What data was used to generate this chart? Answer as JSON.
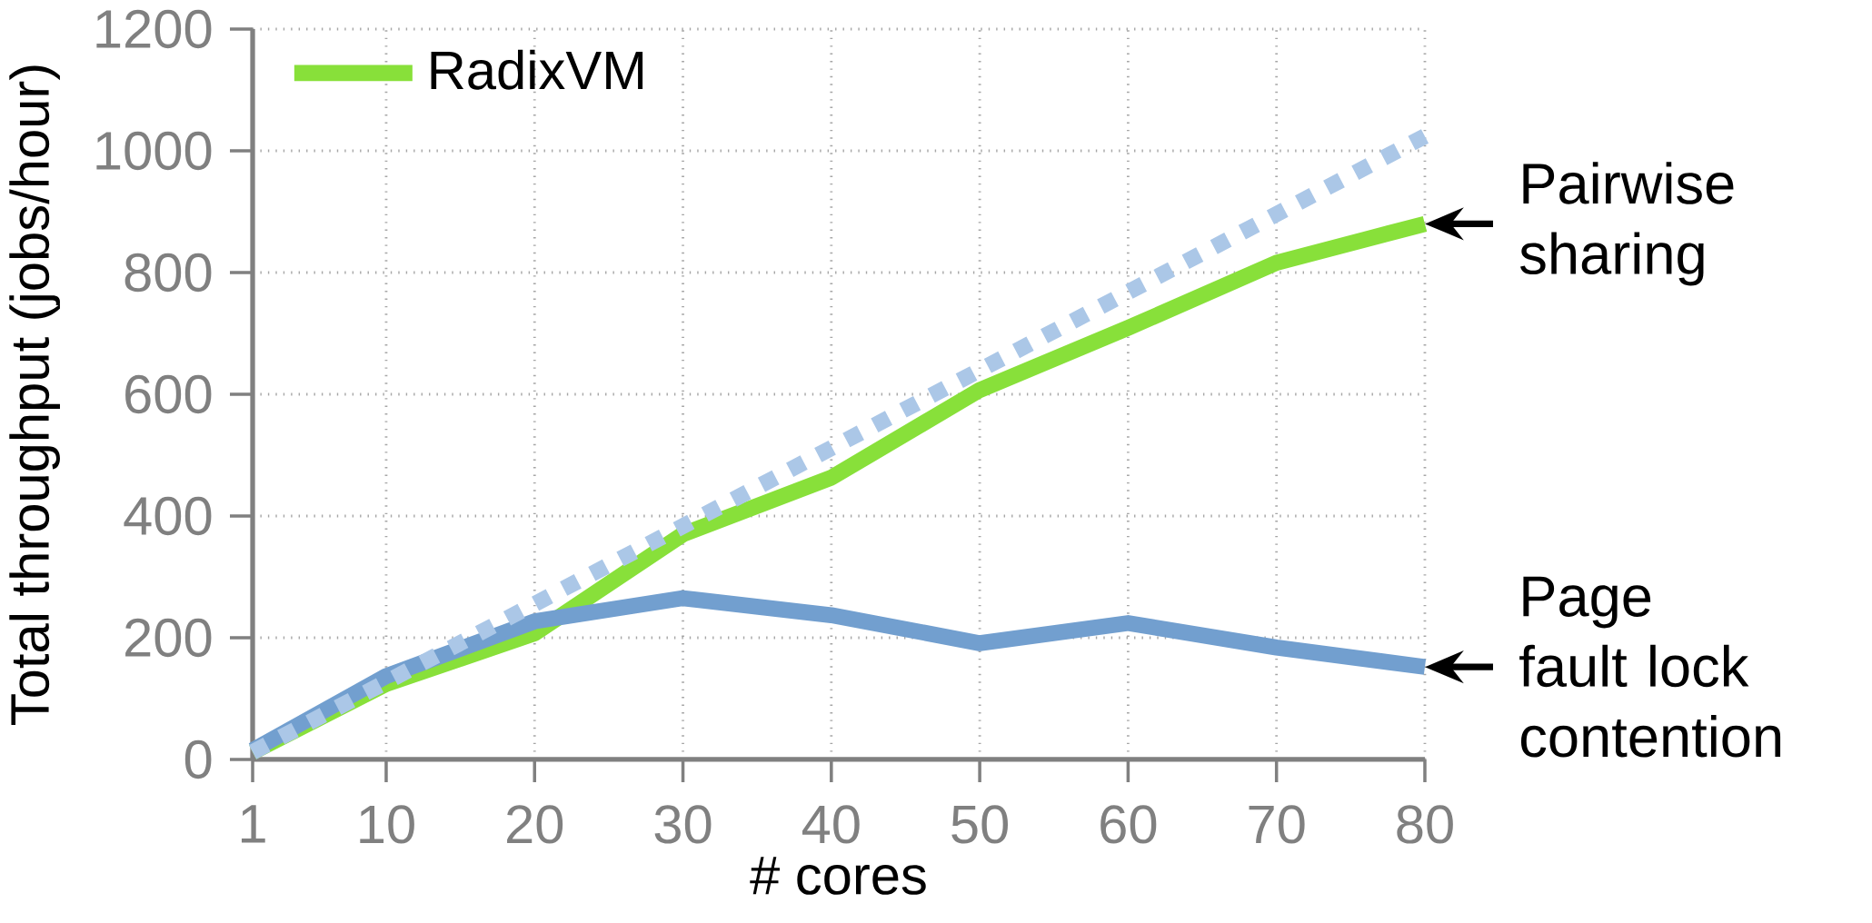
{
  "chart_data": {
    "type": "line",
    "xlabel": "# cores",
    "ylabel": "Total throughput (jobs/hour)",
    "x": [
      1,
      10,
      20,
      30,
      40,
      50,
      60,
      70,
      80
    ],
    "xlim": [
      1,
      80
    ],
    "xticks": [
      1,
      10,
      20,
      30,
      40,
      50,
      60,
      70,
      80
    ],
    "ylim": [
      0,
      1200
    ],
    "yticks": [
      0,
      200,
      400,
      600,
      800,
      1000,
      1200
    ],
    "grid": true,
    "legend": "top left",
    "series": [
      {
        "name": "RadixVM",
        "color": "#88e03a",
        "values": [
          12,
          124,
          207,
          370,
          463,
          607,
          709,
          816,
          880
        ]
      },
      {
        "color": "#729fcf",
        "values": [
          15,
          137,
          227,
          265,
          237,
          191,
          224,
          184,
          152
        ]
      },
      {
        "color": "#abc7e7",
        "x": [
          1,
          80
        ],
        "values": [
          12,
          1024
        ],
        "line_style": "dotted"
      }
    ],
    "annotations": [
      {
        "text": "Pairwise sharing",
        "x": 80,
        "y": 880
      },
      {
        "text": "Page fault lock contention",
        "x": 80,
        "y": 152
      }
    ]
  }
}
